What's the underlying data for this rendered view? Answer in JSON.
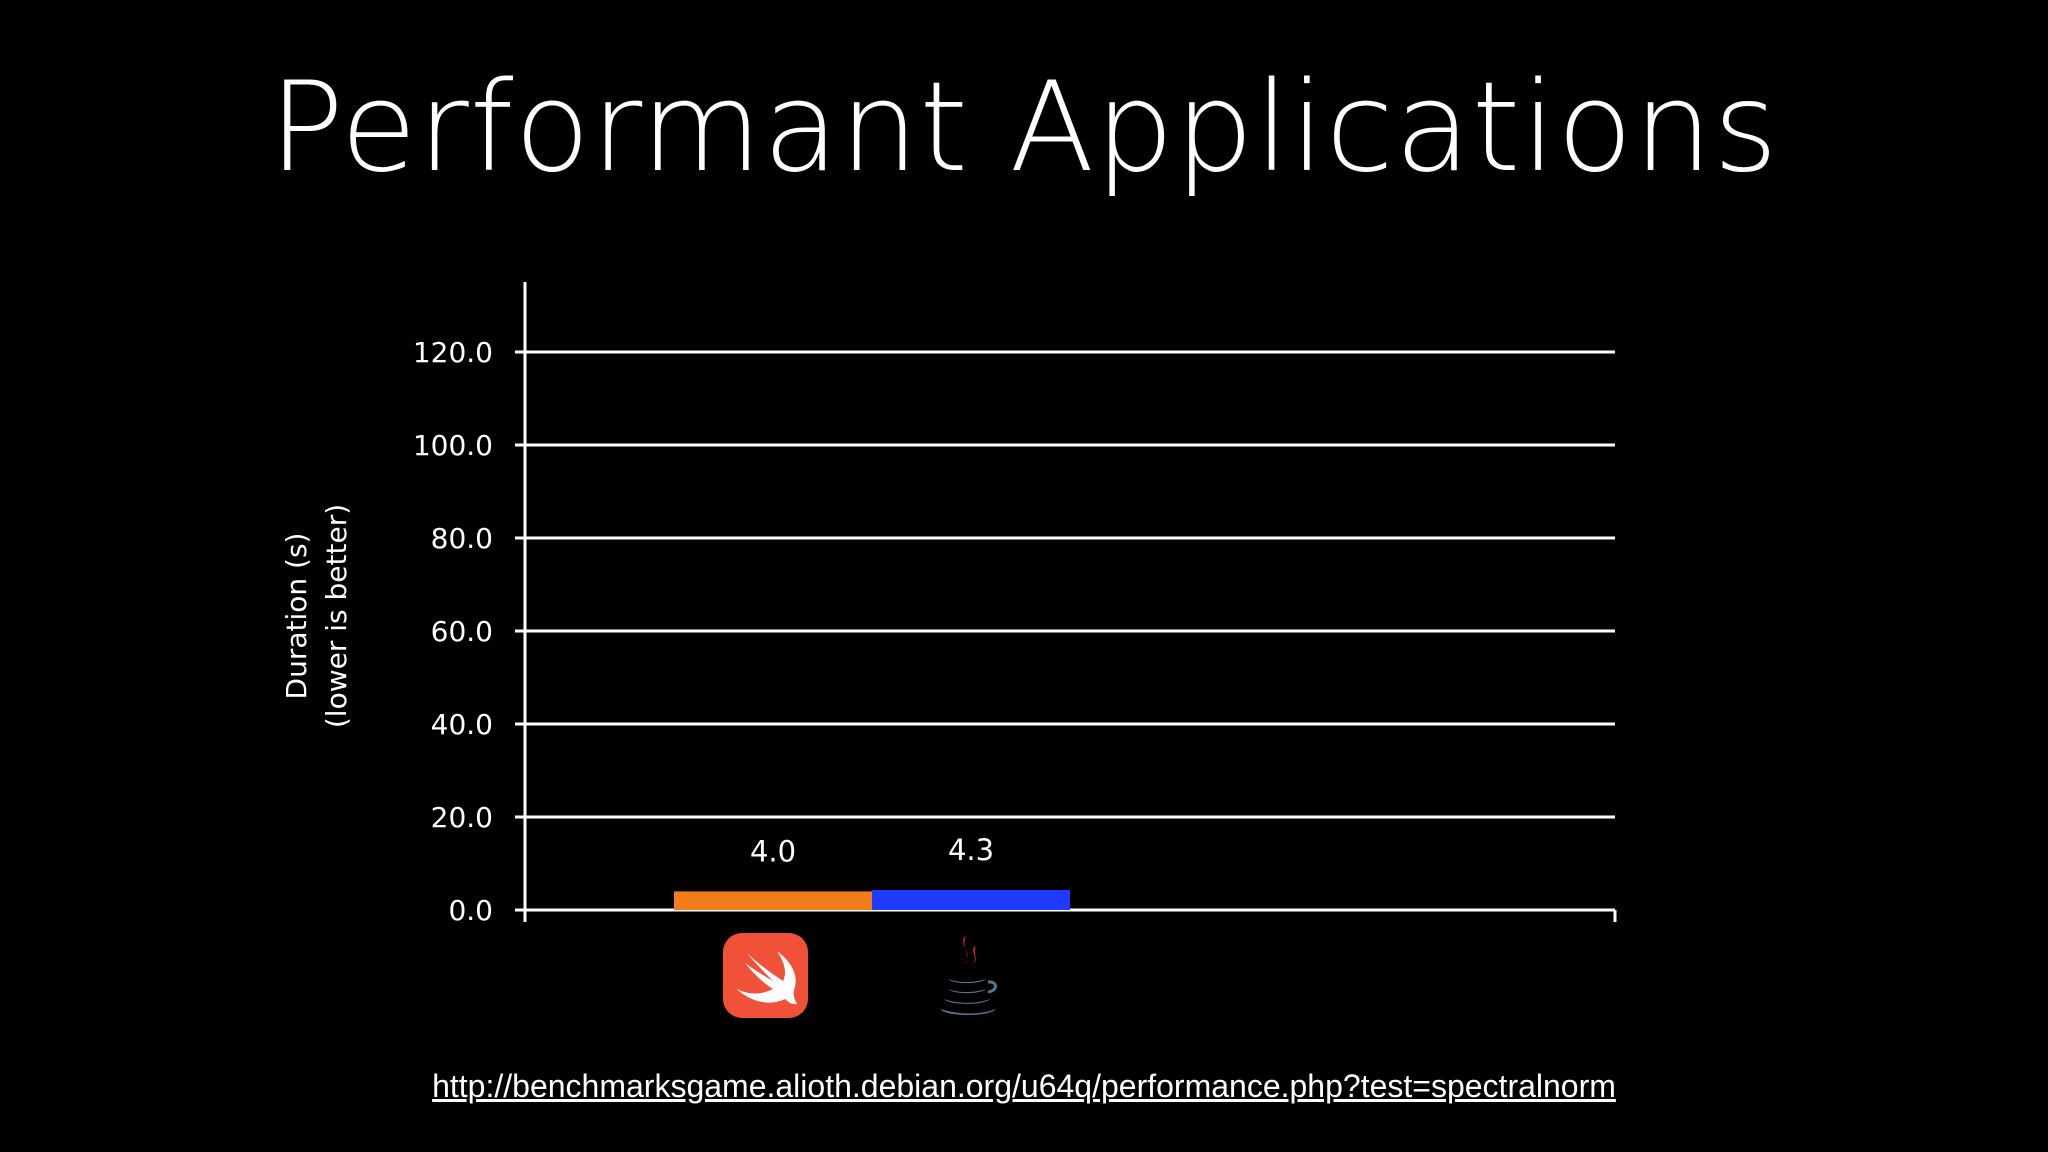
{
  "slide": {
    "title": "Performant Applications",
    "source_url": "http://benchmarksgame.alioth.debian.org/u64q/performance.php?test=spectralnorm"
  },
  "colors": {
    "background": "#000000",
    "text": "#ffffff",
    "swift_bar": "#f07d17",
    "java_bar": "#1f3bff",
    "swift_icon": "#f05138",
    "java_cup": "#4e7896",
    "java_steam": "#e11f21"
  },
  "chart_data": {
    "type": "bar",
    "categories": [
      "Swift",
      "Java"
    ],
    "category_icons": [
      "swift-logo-icon",
      "java-logo-icon"
    ],
    "values": [
      4.0,
      4.3
    ],
    "data_labels": [
      "4.0",
      "4.3"
    ],
    "ylabel_lines": [
      "Duration (s)",
      "(lower is better)"
    ],
    "ylim": [
      0,
      120
    ],
    "yticks": [
      0,
      20,
      40,
      60,
      80,
      100,
      120
    ],
    "ytick_labels": [
      "0.0",
      "20.0",
      "40.0",
      "60.0",
      "80.0",
      "100.0",
      "120.0"
    ],
    "grid": true,
    "legend": "none"
  }
}
